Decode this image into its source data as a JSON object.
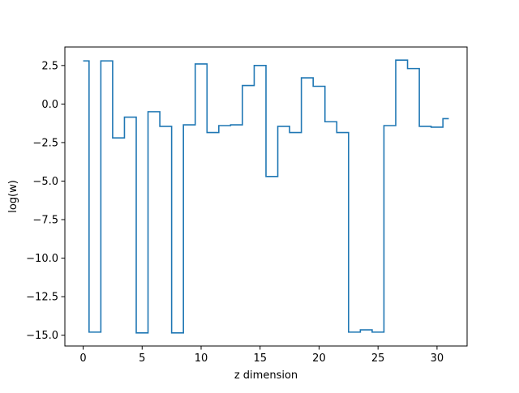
{
  "chart_data": {
    "type": "line",
    "drawstyle": "steps-mid",
    "xlabel": "z dimension",
    "ylabel": "log(w)",
    "xlim": [
      -1.55,
      32.55
    ],
    "ylim": [
      -15.7,
      3.7
    ],
    "xticks": [
      0,
      5,
      10,
      15,
      20,
      25,
      30
    ],
    "xtick_labels": [
      "0",
      "5",
      "10",
      "15",
      "20",
      "25",
      "30"
    ],
    "yticks": [
      2.5,
      0.0,
      -2.5,
      -5.0,
      -7.5,
      -10.0,
      -12.5,
      -15.0
    ],
    "ytick_labels": [
      "2.5",
      "0.0",
      "−2.5",
      "−5.0",
      "−7.5",
      "−10.0",
      "−12.5",
      "−15.0"
    ],
    "grid": false,
    "series": [
      {
        "color": "#1f77b4",
        "x": [
          0,
          1,
          2,
          3,
          4,
          5,
          6,
          7,
          8,
          9,
          10,
          11,
          12,
          13,
          14,
          15,
          16,
          17,
          18,
          19,
          20,
          21,
          22,
          23,
          24,
          25,
          26,
          27,
          28,
          29,
          30,
          31
        ],
        "y": [
          2.8,
          -14.8,
          2.8,
          -2.2,
          -0.85,
          -14.85,
          -0.5,
          -1.45,
          -14.85,
          -1.35,
          2.6,
          -1.85,
          -1.4,
          -1.35,
          1.2,
          2.5,
          -4.7,
          -1.45,
          -1.85,
          1.7,
          1.15,
          -1.15,
          -1.85,
          -14.8,
          -14.65,
          -14.8,
          -1.4,
          2.85,
          2.3,
          -1.45,
          -1.5,
          -0.95
        ]
      }
    ]
  }
}
